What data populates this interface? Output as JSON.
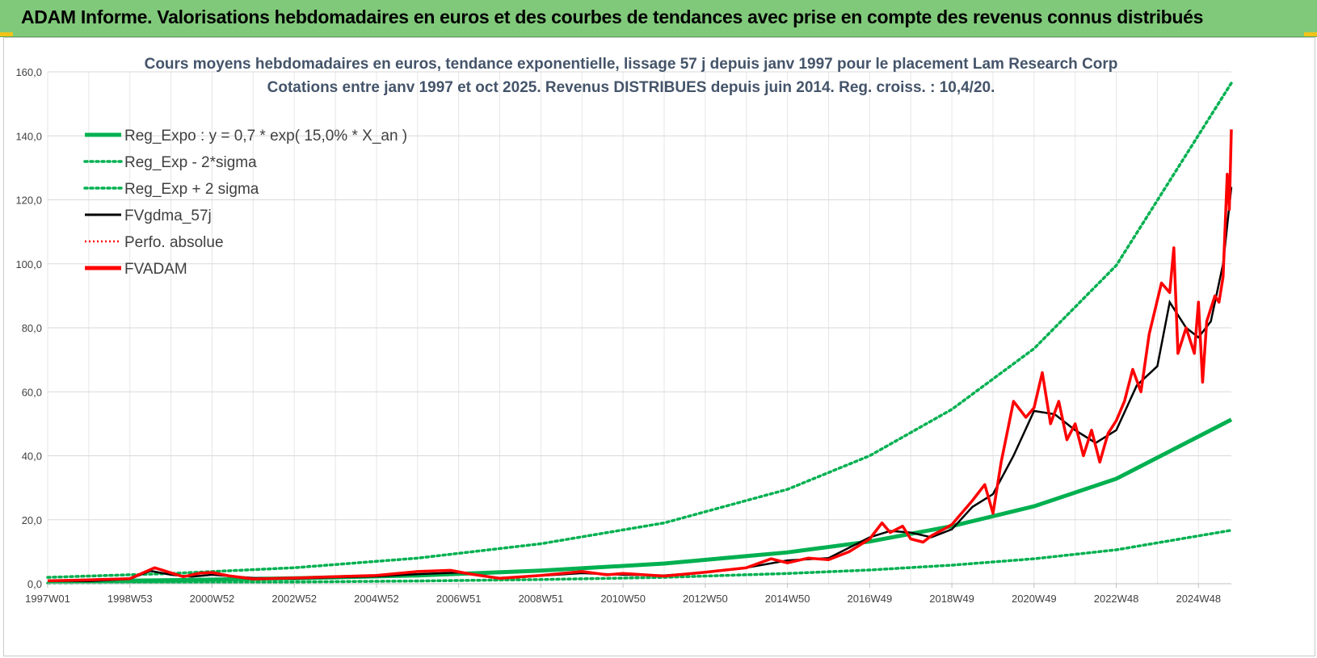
{
  "banner": {
    "title": "ADAM Informe. Valorisations hebdomadaires en euros et des courbes de tendances avec prise en compte des revenus connus distribués"
  },
  "colors": {
    "banner_bg": "#80c97a",
    "reg_green": "#00b050",
    "red": "#ff0000",
    "black": "#000000",
    "grid": "#d9d9d9",
    "title": "#44546a"
  },
  "chart_data": {
    "type": "line",
    "title": "Cours moyens hebdomadaires en euros, tendance exponentielle, lissage 57 j depuis janv 1997 pour le placement Lam Research Corp",
    "subtitle": "Cotations entre janv 1997 et oct 2025. Revenus DISTRIBUES depuis juin 2014. Reg. croiss. : 10,4/20.",
    "xlabel": "",
    "ylabel": "",
    "ylim": [
      0,
      160
    ],
    "y_ticks": [
      "0,0",
      "20,0",
      "40,0",
      "60,0",
      "80,0",
      "100,0",
      "120,0",
      "140,0",
      "160,0"
    ],
    "x_ticks": [
      "1997W01",
      "1998W53",
      "2000W52",
      "2002W52",
      "2004W52",
      "2006W51",
      "2008W51",
      "2010W50",
      "2012W50",
      "2014W50",
      "2016W49",
      "2018W49",
      "2020W49",
      "2022W48",
      "2024W48"
    ],
    "x_tick_years": [
      1997.0,
      1999.0,
      2001.0,
      2003.0,
      2005.0,
      2007.0,
      2009.0,
      2011.0,
      2013.0,
      2015.0,
      2017.0,
      2019.0,
      2021.0,
      2023.0,
      2025.0
    ],
    "xlim": [
      1997.0,
      2025.8
    ],
    "grid": true,
    "legend_position": "top-left",
    "series": [
      {
        "name": "Reg_Expo : y = 0,7 * exp( 15,0% *  X_an )",
        "style": "solid-thick-green",
        "x": [
          1997.0,
          2000.0,
          2003.0,
          2006.0,
          2009.0,
          2012.0,
          2015.0,
          2017.0,
          2019.0,
          2021.0,
          2023.0,
          2025.8
        ],
        "values": [
          0.7,
          1.1,
          1.7,
          2.6,
          4.1,
          6.3,
          9.8,
          13.2,
          18.0,
          24.2,
          32.8,
          51.3
        ]
      },
      {
        "name": "Reg_Exp - 2*sigma",
        "style": "dotted-green",
        "x": [
          1997.0,
          2000.0,
          2003.0,
          2006.0,
          2009.0,
          2012.0,
          2015.0,
          2017.0,
          2019.0,
          2021.0,
          2023.0,
          2025.8
        ],
        "values": [
          0.2,
          0.35,
          0.55,
          0.85,
          1.3,
          2.0,
          3.2,
          4.3,
          5.8,
          7.8,
          10.6,
          16.7
        ]
      },
      {
        "name": "Reg_Exp + 2 sigma",
        "style": "dotted-green",
        "x": [
          1997.0,
          2000.0,
          2003.0,
          2006.0,
          2009.0,
          2012.0,
          2015.0,
          2017.0,
          2019.0,
          2021.0,
          2023.0,
          2025.8
        ],
        "values": [
          2.0,
          3.2,
          5.0,
          8.0,
          12.5,
          19.0,
          29.5,
          40.0,
          54.5,
          73.5,
          99.5,
          156.5
        ]
      },
      {
        "name": "FVgdma_57j",
        "style": "solid-black",
        "x": [
          1997.0,
          1998.0,
          1999.0,
          1999.5,
          2000.0,
          2000.5,
          2001.0,
          2002.0,
          2003.0,
          2004.0,
          2005.0,
          2006.0,
          2007.0,
          2008.0,
          2009.0,
          2010.0,
          2011.0,
          2012.0,
          2013.0,
          2014.0,
          2015.0,
          2016.0,
          2017.0,
          2017.5,
          2018.0,
          2018.5,
          2019.0,
          2019.5,
          2020.0,
          2020.5,
          2021.0,
          2021.5,
          2022.0,
          2022.5,
          2023.0,
          2023.5,
          2024.0,
          2024.3,
          2024.7,
          2025.0,
          2025.3,
          2025.6,
          2025.8
        ],
        "values": [
          0.9,
          0.8,
          1.5,
          4.0,
          2.8,
          2.2,
          2.8,
          1.8,
          1.6,
          2.0,
          2.3,
          3.0,
          3.5,
          1.8,
          2.5,
          3.3,
          2.8,
          2.6,
          3.5,
          5.0,
          7.3,
          8.0,
          14.5,
          16.5,
          16.0,
          14.5,
          17.0,
          24.0,
          28.0,
          40.0,
          54.0,
          53.0,
          48.0,
          44.0,
          48.0,
          62.0,
          68.0,
          88.0,
          80.0,
          77.0,
          82.0,
          100.0,
          124.0
        ]
      },
      {
        "name": "Perfo. absolue",
        "style": "dotted-red",
        "x": [],
        "values": []
      },
      {
        "name": "FVADAM",
        "style": "solid-thick-red",
        "x": [
          1997.0,
          1998.0,
          1999.0,
          1999.6,
          1999.9,
          2000.3,
          2000.7,
          2001.0,
          2001.4,
          2002.0,
          2003.0,
          2004.0,
          2005.0,
          2006.0,
          2006.8,
          2007.3,
          2008.0,
          2009.0,
          2010.0,
          2010.6,
          2011.0,
          2012.0,
          2013.0,
          2014.0,
          2014.6,
          2015.0,
          2015.5,
          2016.0,
          2016.5,
          2017.0,
          2017.3,
          2017.5,
          2017.8,
          2018.0,
          2018.3,
          2018.5,
          2018.8,
          2019.0,
          2019.5,
          2019.8,
          2020.0,
          2020.2,
          2020.5,
          2020.8,
          2021.0,
          2021.2,
          2021.4,
          2021.6,
          2021.8,
          2022.0,
          2022.2,
          2022.4,
          2022.6,
          2022.8,
          2023.0,
          2023.2,
          2023.4,
          2023.6,
          2023.8,
          2024.1,
          2024.3,
          2024.4,
          2024.5,
          2024.7,
          2024.9,
          2025.0,
          2025.1,
          2025.2,
          2025.3,
          2025.4,
          2025.5,
          2025.6,
          2025.7,
          2025.75,
          2025.8
        ],
        "values": [
          0.9,
          1.2,
          1.6,
          5.0,
          3.8,
          2.2,
          3.3,
          3.5,
          2.5,
          1.5,
          1.8,
          2.2,
          2.6,
          3.8,
          4.2,
          3.0,
          1.7,
          2.6,
          3.8,
          2.8,
          3.2,
          2.4,
          3.6,
          5.0,
          7.8,
          6.5,
          8.0,
          7.5,
          10.0,
          14.0,
          19.0,
          16.0,
          18.0,
          14.0,
          13.0,
          15.0,
          17.0,
          18.5,
          26.0,
          31.0,
          22.0,
          38.0,
          57.0,
          52.0,
          55.0,
          66.0,
          50.0,
          57.0,
          45.0,
          50.0,
          40.0,
          48.0,
          38.0,
          47.0,
          51.0,
          57.0,
          67.0,
          60.0,
          78.0,
          94.0,
          91.0,
          105.0,
          72.0,
          80.0,
          72.0,
          88.0,
          63.0,
          82.0,
          86.0,
          90.0,
          88.0,
          96.0,
          128.0,
          117.0,
          142.0
        ]
      }
    ]
  }
}
